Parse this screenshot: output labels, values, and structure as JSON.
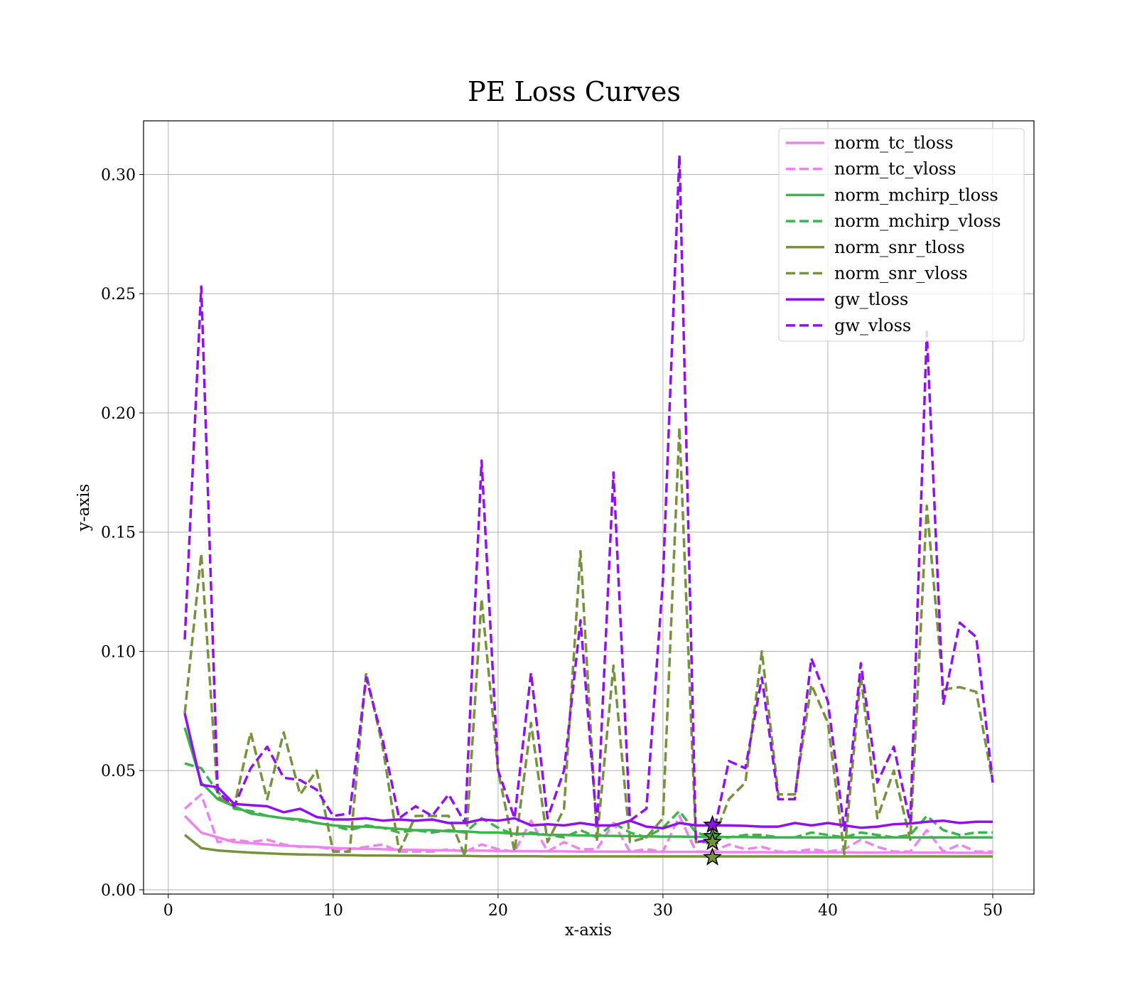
{
  "chart_data": {
    "type": "line",
    "title": "PE Loss Curves",
    "xlabel": "x-axis",
    "ylabel": "y-axis",
    "xlim": [
      -1.5,
      52.5
    ],
    "ylim": [
      -0.0018,
      0.3225
    ],
    "xticks": [
      0,
      10,
      20,
      30,
      40,
      50
    ],
    "yticks": [
      0.0,
      0.05,
      0.1,
      0.15,
      0.2,
      0.25,
      0.3
    ],
    "ytick_labels": [
      "0.00",
      "0.05",
      "0.10",
      "0.15",
      "0.20",
      "0.25",
      "0.30"
    ],
    "grid": true,
    "legend_position": "top-right",
    "x": [
      1,
      2,
      3,
      4,
      5,
      6,
      7,
      8,
      9,
      10,
      11,
      12,
      13,
      14,
      15,
      16,
      17,
      18,
      19,
      20,
      21,
      22,
      23,
      24,
      25,
      26,
      27,
      28,
      29,
      30,
      31,
      32,
      33,
      34,
      35,
      36,
      37,
      38,
      39,
      40,
      41,
      42,
      43,
      44,
      45,
      46,
      47,
      48,
      49,
      50
    ],
    "series": [
      {
        "name": "norm_tc_tloss",
        "color": "#ee82ee",
        "style": "solid",
        "values": [
          0.031,
          0.024,
          0.022,
          0.02,
          0.0195,
          0.019,
          0.0185,
          0.0182,
          0.018,
          0.0175,
          0.0173,
          0.0172,
          0.017,
          0.0168,
          0.0167,
          0.0166,
          0.0165,
          0.0164,
          0.0164,
          0.0163,
          0.0162,
          0.0162,
          0.0161,
          0.0161,
          0.016,
          0.016,
          0.016,
          0.016,
          0.0159,
          0.0159,
          0.0159,
          0.0159,
          0.0158,
          0.0158,
          0.0158,
          0.0158,
          0.0157,
          0.0157,
          0.0157,
          0.0157,
          0.0157,
          0.0156,
          0.0156,
          0.0156,
          0.0156,
          0.0156,
          0.0156,
          0.0155,
          0.0155,
          0.0155
        ]
      },
      {
        "name": "norm_tc_vloss",
        "color": "#ee82ee",
        "style": "dashed",
        "values": [
          0.034,
          0.04,
          0.02,
          0.021,
          0.02,
          0.021,
          0.019,
          0.018,
          0.018,
          0.017,
          0.017,
          0.018,
          0.019,
          0.016,
          0.016,
          0.016,
          0.017,
          0.016,
          0.019,
          0.017,
          0.016,
          0.029,
          0.016,
          0.02,
          0.017,
          0.017,
          0.028,
          0.016,
          0.017,
          0.016,
          0.031,
          0.016,
          0.016,
          0.019,
          0.017,
          0.018,
          0.016,
          0.016,
          0.017,
          0.016,
          0.017,
          0.021,
          0.018,
          0.016,
          0.016,
          0.025,
          0.016,
          0.019,
          0.016,
          0.016
        ]
      },
      {
        "name": "norm_mchirp_tloss",
        "color": "#3cb44b",
        "style": "solid",
        "values": [
          0.068,
          0.045,
          0.038,
          0.035,
          0.032,
          0.031,
          0.03,
          0.0295,
          0.028,
          0.027,
          0.0265,
          0.0265,
          0.026,
          0.0255,
          0.025,
          0.025,
          0.0245,
          0.0245,
          0.024,
          0.024,
          0.0235,
          0.0235,
          0.023,
          0.023,
          0.0228,
          0.0227,
          0.0226,
          0.0225,
          0.0224,
          0.0223,
          0.0223,
          0.0222,
          0.0222,
          0.0221,
          0.0221,
          0.022,
          0.022,
          0.022,
          0.022,
          0.022,
          0.022,
          0.022,
          0.022,
          0.022,
          0.022,
          0.022,
          0.022,
          0.022,
          0.022,
          0.022
        ]
      },
      {
        "name": "norm_mchirp_vloss",
        "color": "#3cb44b",
        "style": "dashed",
        "values": [
          0.053,
          0.051,
          0.041,
          0.034,
          0.033,
          0.031,
          0.03,
          0.029,
          0.028,
          0.027,
          0.025,
          0.027,
          0.026,
          0.024,
          0.025,
          0.024,
          0.025,
          0.024,
          0.03,
          0.026,
          0.023,
          0.024,
          0.023,
          0.022,
          0.025,
          0.022,
          0.028,
          0.024,
          0.022,
          0.026,
          0.033,
          0.024,
          0.022,
          0.022,
          0.023,
          0.023,
          0.022,
          0.022,
          0.024,
          0.023,
          0.022,
          0.024,
          0.023,
          0.022,
          0.023,
          0.031,
          0.025,
          0.023,
          0.024,
          0.024
        ]
      },
      {
        "name": "norm_snr_tloss",
        "color": "#76923c",
        "style": "solid",
        "values": [
          0.023,
          0.0175,
          0.0165,
          0.016,
          0.0156,
          0.0153,
          0.015,
          0.0148,
          0.0147,
          0.0146,
          0.0145,
          0.0144,
          0.0144,
          0.0143,
          0.0143,
          0.0142,
          0.0142,
          0.0142,
          0.0141,
          0.0141,
          0.0141,
          0.0141,
          0.014,
          0.014,
          0.014,
          0.014,
          0.014,
          0.014,
          0.014,
          0.014,
          0.014,
          0.014,
          0.014,
          0.014,
          0.014,
          0.014,
          0.014,
          0.014,
          0.014,
          0.014,
          0.014,
          0.014,
          0.014,
          0.014,
          0.014,
          0.014,
          0.014,
          0.014,
          0.014,
          0.014
        ]
      },
      {
        "name": "norm_snr_vloss",
        "color": "#76923c",
        "style": "dashed",
        "values": [
          0.074,
          0.141,
          0.039,
          0.035,
          0.066,
          0.038,
          0.066,
          0.04,
          0.05,
          0.016,
          0.016,
          0.091,
          0.06,
          0.016,
          0.031,
          0.031,
          0.031,
          0.014,
          0.122,
          0.05,
          0.016,
          0.07,
          0.02,
          0.034,
          0.142,
          0.021,
          0.094,
          0.02,
          0.022,
          0.03,
          0.194,
          0.02,
          0.02,
          0.038,
          0.045,
          0.1,
          0.04,
          0.04,
          0.086,
          0.07,
          0.015,
          0.09,
          0.03,
          0.05,
          0.021,
          0.161,
          0.084,
          0.085,
          0.083,
          0.045
        ]
      },
      {
        "name": "gw_tloss",
        "color": "#9010ee",
        "style": "solid",
        "values": [
          0.074,
          0.044,
          0.043,
          0.036,
          0.0355,
          0.035,
          0.0325,
          0.034,
          0.0305,
          0.0295,
          0.0295,
          0.03,
          0.029,
          0.0295,
          0.029,
          0.0295,
          0.028,
          0.028,
          0.0295,
          0.029,
          0.03,
          0.027,
          0.0275,
          0.027,
          0.028,
          0.027,
          0.027,
          0.029,
          0.0265,
          0.0258,
          0.028,
          0.027,
          0.027,
          0.027,
          0.0268,
          0.0265,
          0.0265,
          0.028,
          0.027,
          0.028,
          0.027,
          0.026,
          0.0265,
          0.0275,
          0.0278,
          0.0285,
          0.029,
          0.028,
          0.0285,
          0.0285
        ]
      },
      {
        "name": "gw_vloss",
        "color": "#9010ee",
        "style": "dashed",
        "values": [
          0.105,
          0.253,
          0.041,
          0.035,
          0.051,
          0.06,
          0.047,
          0.046,
          0.042,
          0.031,
          0.032,
          0.089,
          0.063,
          0.03,
          0.035,
          0.031,
          0.04,
          0.028,
          0.18,
          0.05,
          0.03,
          0.091,
          0.03,
          0.05,
          0.113,
          0.026,
          0.175,
          0.029,
          0.034,
          0.13,
          0.308,
          0.02,
          0.021,
          0.054,
          0.051,
          0.089,
          0.038,
          0.038,
          0.097,
          0.079,
          0.025,
          0.095,
          0.045,
          0.06,
          0.028,
          0.234,
          0.078,
          0.112,
          0.106,
          0.045
        ]
      }
    ],
    "markers": [
      {
        "x": 33,
        "y": 0.0272,
        "color": "#9010ee"
      },
      {
        "x": 33,
        "y": 0.0224,
        "color": "#3cb44b"
      },
      {
        "x": 33,
        "y": 0.02,
        "color": "#76923c"
      },
      {
        "x": 33,
        "y": 0.0136,
        "color": "#76923c"
      }
    ]
  }
}
